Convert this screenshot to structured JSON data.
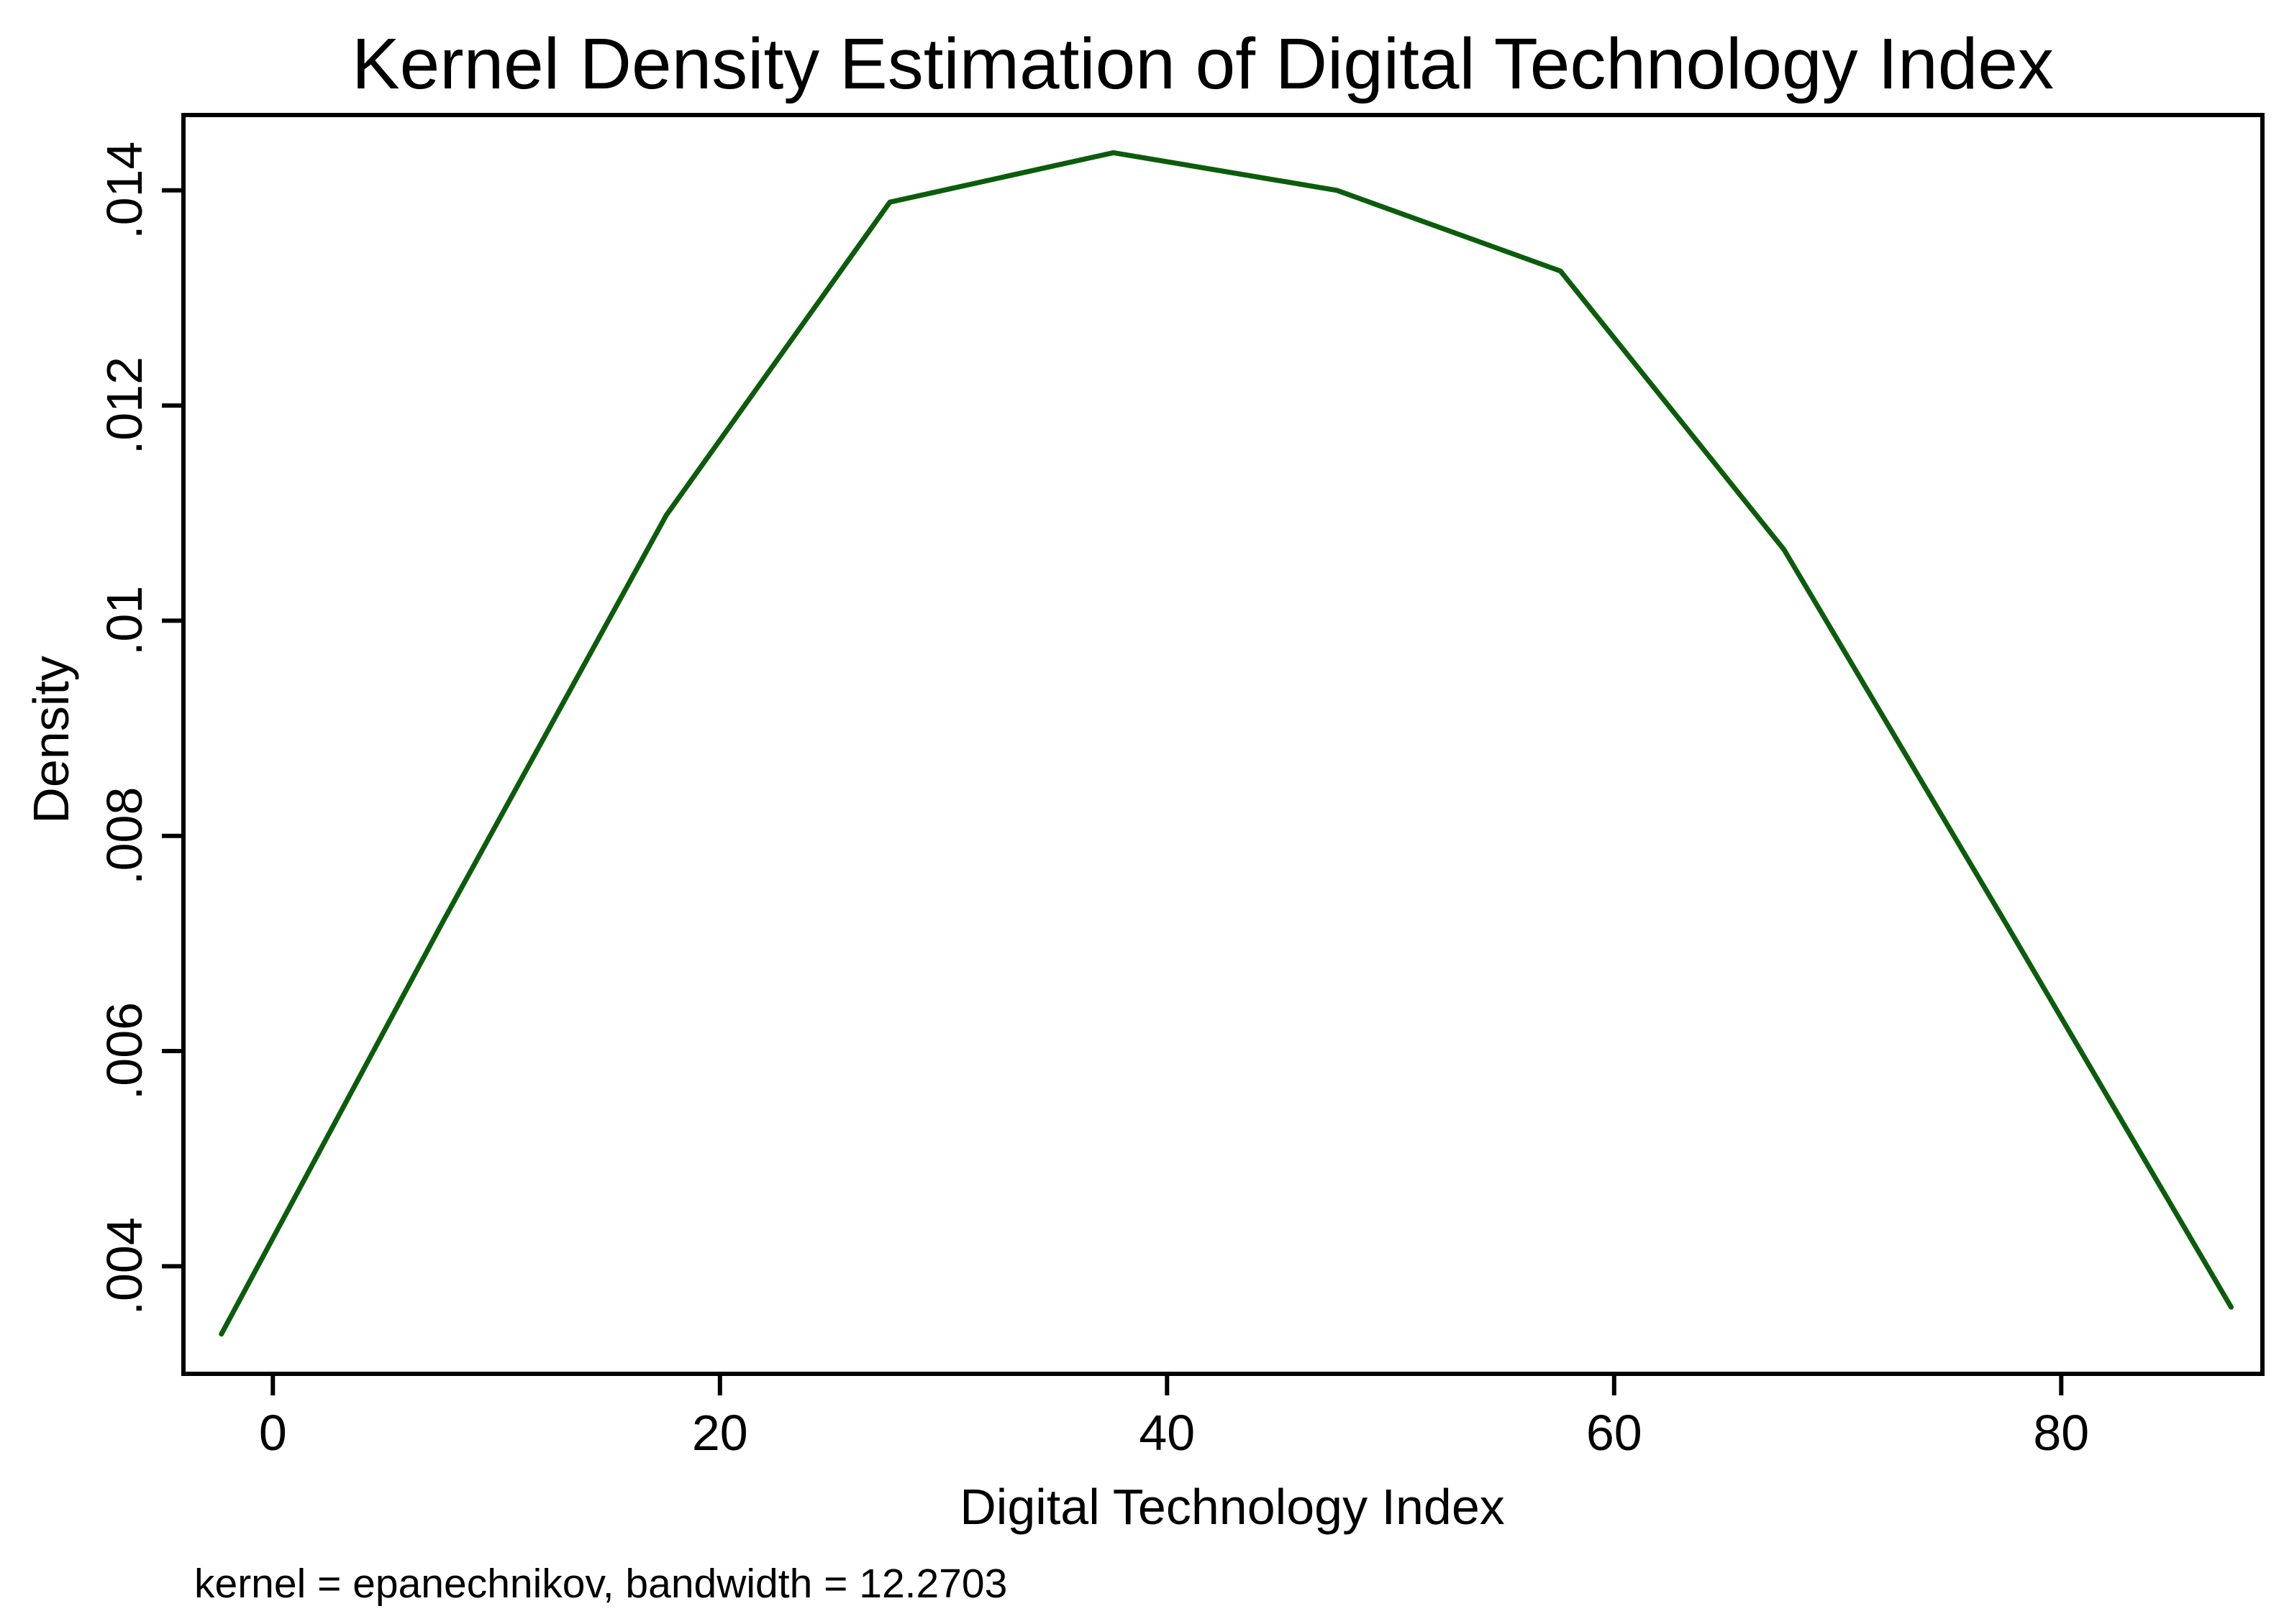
{
  "chart_data": {
    "type": "line",
    "title": "Kernel Density Estimation of Digital Technology Index",
    "xlabel": "Digital Technology Index",
    "ylabel": "Density",
    "note": "kernel = epanechnikov, bandwidth = 12.2703",
    "xlim": [
      -4,
      89
    ],
    "ylim": [
      0.003,
      0.0147
    ],
    "x_ticks": [
      0,
      20,
      40,
      60,
      80
    ],
    "x_tick_labels": [
      "0",
      "20",
      "40",
      "60",
      "80"
    ],
    "y_ticks": [
      0.004,
      0.006,
      0.008,
      0.01,
      0.012,
      0.014
    ],
    "y_tick_labels": [
      ".004",
      ".006",
      ".008",
      ".01",
      ".012",
      ".014"
    ],
    "grid": false,
    "legend": "none",
    "series": [
      {
        "color": "#0b5c0b",
        "x": [
          -2.3,
          7.6,
          17.6,
          27.6,
          37.6,
          47.6,
          57.6,
          67.6,
          77.6,
          87.6
        ],
        "y": [
          0.00337,
          0.0072,
          0.01098,
          0.01389,
          0.01435,
          0.014,
          0.01325,
          0.01066,
          0.00716,
          0.00362
        ]
      }
    ]
  }
}
